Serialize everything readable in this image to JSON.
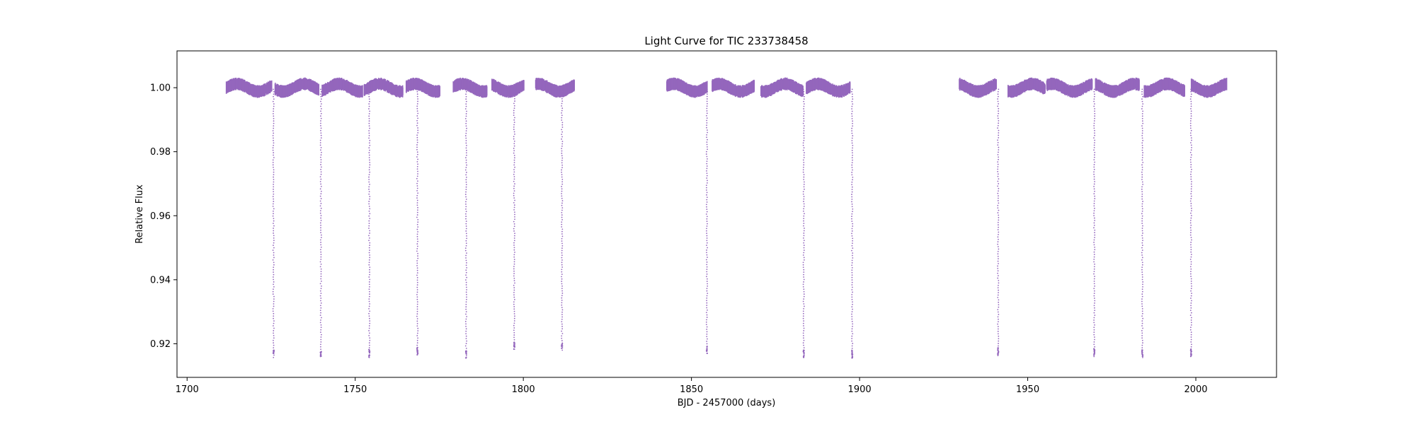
{
  "chart_data": {
    "type": "scatter",
    "title": "Light Curve for TIC 233738458",
    "xlabel": "BJD - 2457000 (days)",
    "ylabel": "Relative Flux",
    "xlim": [
      1697,
      2024
    ],
    "ylim": [
      0.9095,
      1.0115
    ],
    "xticks": [
      1700,
      1750,
      1800,
      1850,
      1900,
      1950,
      2000
    ],
    "yticks": [
      0.92,
      0.94,
      0.96,
      0.98,
      1.0
    ],
    "ytick_labels": [
      "0.92",
      "0.94",
      "0.96",
      "0.98",
      "1.00"
    ],
    "grid": false,
    "color": "#9467bd",
    "baseline_segments": [
      {
        "start": 1711.5,
        "end": 1725.0
      },
      {
        "start": 1726.0,
        "end": 1739.0
      },
      {
        "start": 1740.0,
        "end": 1752.0
      },
      {
        "start": 1752.5,
        "end": 1764.0
      },
      {
        "start": 1765.0,
        "end": 1775.0
      },
      {
        "start": 1779.0,
        "end": 1789.0
      },
      {
        "start": 1790.5,
        "end": 1800.0
      },
      {
        "start": 1803.5,
        "end": 1815.0
      },
      {
        "start": 1842.5,
        "end": 1854.5
      },
      {
        "start": 1856.0,
        "end": 1868.5
      },
      {
        "start": 1870.5,
        "end": 1883.0
      },
      {
        "start": 1884.0,
        "end": 1897.0
      },
      {
        "start": 1929.5,
        "end": 1940.5
      },
      {
        "start": 1944.0,
        "end": 1955.0
      },
      {
        "start": 1955.5,
        "end": 1969.0
      },
      {
        "start": 1970.0,
        "end": 1983.0
      },
      {
        "start": 1984.5,
        "end": 1996.5
      },
      {
        "start": 1998.5,
        "end": 2009.0
      }
    ],
    "transits": [
      {
        "x": 1725.7,
        "min": 0.9157
      },
      {
        "x": 1739.8,
        "min": 0.916
      },
      {
        "x": 1754.2,
        "min": 0.9157
      },
      {
        "x": 1768.5,
        "min": 0.9165
      },
      {
        "x": 1783.0,
        "min": 0.9155
      },
      {
        "x": 1797.3,
        "min": 0.9183
      },
      {
        "x": 1811.5,
        "min": 0.918
      },
      {
        "x": 1854.6,
        "min": 0.917
      },
      {
        "x": 1883.4,
        "min": 0.9157
      },
      {
        "x": 1897.8,
        "min": 0.9155
      },
      {
        "x": 1941.2,
        "min": 0.9163
      },
      {
        "x": 1969.8,
        "min": 0.916
      },
      {
        "x": 1984.1,
        "min": 0.9157
      },
      {
        "x": 1998.6,
        "min": 0.916
      }
    ]
  }
}
